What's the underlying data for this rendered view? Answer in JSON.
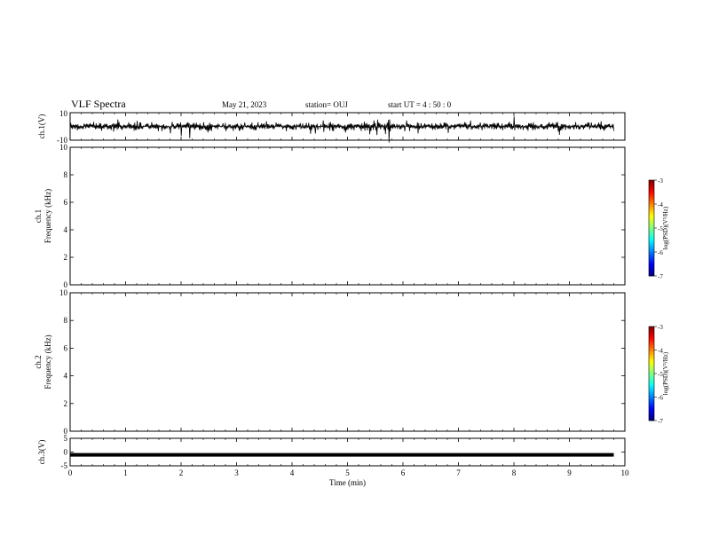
{
  "header": {
    "title": "VLF Spectra",
    "date": "May 21, 2023",
    "station": "station= OUJ",
    "start_ut": "start  UT  =   4 : 50 : 0"
  },
  "chart_data": [
    {
      "type": "line",
      "panel": "ch1-waveform",
      "ylabel": "ch.1(V)",
      "ylim": [
        -10,
        10
      ],
      "yticks": [
        "10",
        "-10"
      ],
      "xlim": [
        0,
        10
      ],
      "description_values": {
        "baseline": 0,
        "typical_amplitude": 2.5,
        "span_min": [
          0,
          9.8
        ]
      }
    },
    {
      "type": "heatmap",
      "panel": "ch1-spectrogram",
      "ylabel": "ch.1\nFrequency (kHz)",
      "ylim": [
        0,
        10
      ],
      "yticks": [
        "0",
        "2",
        "4",
        "6",
        "8",
        "10"
      ],
      "xlim": [
        0,
        10
      ],
      "data_xrange": [
        0,
        9.8
      ],
      "colorbar": {
        "label": "log(PSD)(V²/Hz)",
        "range": [
          -7,
          -3
        ],
        "ticks": [
          "-3",
          "-4",
          "-5",
          "-6",
          "-7"
        ]
      }
    },
    {
      "type": "heatmap",
      "panel": "ch2-spectrogram",
      "ylabel": "ch.2\nFrequency (kHz)",
      "ylim": [
        0,
        10
      ],
      "yticks": [
        "0",
        "2",
        "4",
        "6",
        "8",
        "10"
      ],
      "xlim": [
        0,
        10
      ],
      "data_xrange": [
        0,
        9.8
      ],
      "colorbar": {
        "label": "log(PSD)(V²/Hz)",
        "range": [
          -7,
          -3
        ],
        "ticks": [
          "-3",
          "-4",
          "-5",
          "-6",
          "-7"
        ]
      }
    },
    {
      "type": "line",
      "panel": "ch3-waveform",
      "ylabel": "ch.3(V)",
      "ylim": [
        -5,
        5
      ],
      "yticks": [
        "5",
        "0",
        "-5"
      ],
      "xlim": [
        0,
        10
      ],
      "x": [
        0,
        9.8
      ],
      "y": [
        -1,
        -1
      ],
      "xlabel": "Time  (min)",
      "xticks": [
        "0",
        "1",
        "2",
        "3",
        "4",
        "5",
        "6",
        "7",
        "8",
        "9",
        "10"
      ]
    }
  ]
}
